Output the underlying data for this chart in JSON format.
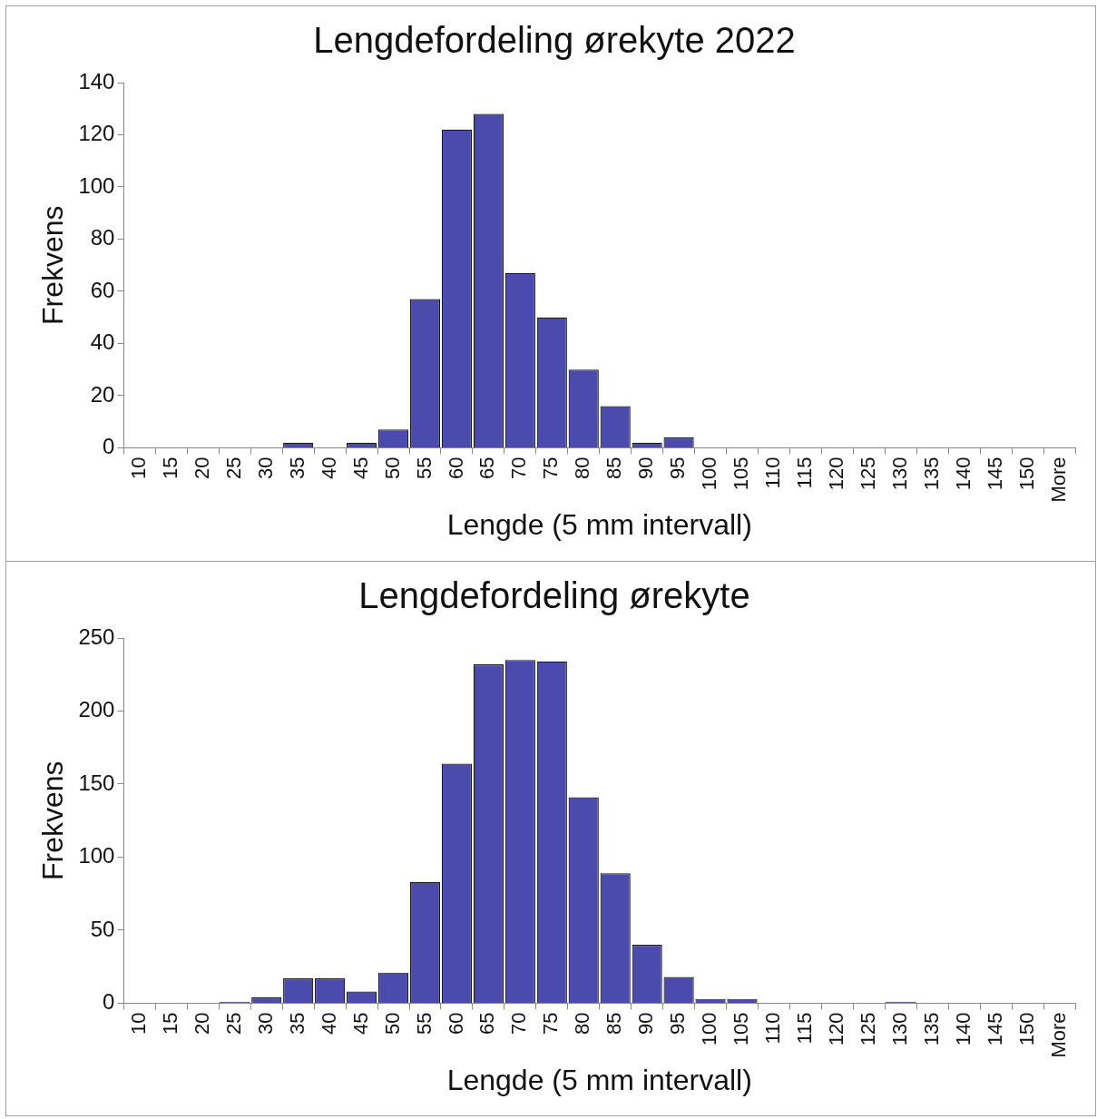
{
  "chart_data": [
    {
      "type": "bar",
      "title": "Lengdefordeling ørekyte 2022",
      "xlabel": "Lengde (5 mm intervall)",
      "ylabel": "Frekvens",
      "categories": [
        "10",
        "15",
        "20",
        "25",
        "30",
        "35",
        "40",
        "45",
        "50",
        "55",
        "60",
        "65",
        "70",
        "75",
        "80",
        "85",
        "90",
        "95",
        "100",
        "105",
        "110",
        "115",
        "120",
        "125",
        "130",
        "135",
        "140",
        "145",
        "150",
        "More"
      ],
      "values": [
        0,
        0,
        0,
        0,
        0,
        2,
        0,
        2,
        7,
        57,
        122,
        128,
        67,
        50,
        30,
        16,
        2,
        4,
        0,
        0,
        0,
        0,
        0,
        0,
        0,
        0,
        0,
        0,
        0,
        0
      ],
      "color": "#4b4bae",
      "ylim": [
        0,
        140
      ],
      "yticks": [
        0,
        20,
        40,
        60,
        80,
        100,
        120,
        140
      ]
    },
    {
      "type": "bar",
      "title": "Lengdefordeling ørekyte",
      "xlabel": "Lengde (5 mm intervall)",
      "ylabel": "Frekvens",
      "categories": [
        "10",
        "15",
        "20",
        "25",
        "30",
        "35",
        "40",
        "45",
        "50",
        "55",
        "60",
        "65",
        "70",
        "75",
        "80",
        "85",
        "90",
        "95",
        "100",
        "105",
        "110",
        "115",
        "120",
        "125",
        "130",
        "135",
        "140",
        "145",
        "150",
        "More"
      ],
      "values": [
        0,
        0,
        0,
        1,
        4,
        17,
        17,
        8,
        21,
        83,
        164,
        232,
        235,
        234,
        141,
        89,
        40,
        18,
        3,
        3,
        0,
        0,
        0,
        0,
        1,
        0,
        0,
        0,
        0,
        0
      ],
      "color": "#4b4bae",
      "ylim": [
        0,
        250
      ],
      "yticks": [
        0,
        50,
        100,
        150,
        200,
        250
      ]
    }
  ]
}
